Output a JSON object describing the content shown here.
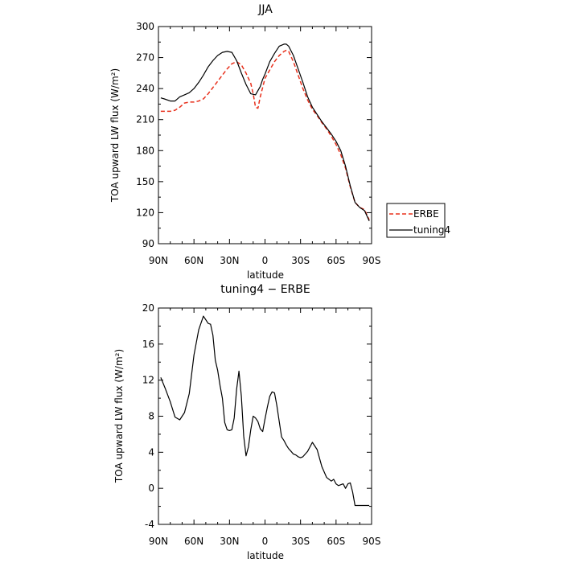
{
  "chart_data": [
    {
      "type": "line",
      "title": "JJA",
      "xlabel": "latitude",
      "ylabel": "TOA upward LW flux (W/m²)",
      "xlim": [
        90,
        -90
      ],
      "ylim": [
        90,
        300
      ],
      "xticks": [
        {
          "value": 90,
          "label": "90N"
        },
        {
          "value": 60,
          "label": "60N"
        },
        {
          "value": 30,
          "label": "30N"
        },
        {
          "value": 0,
          "label": "0"
        },
        {
          "value": -30,
          "label": "30S"
        },
        {
          "value": -60,
          "label": "60S"
        },
        {
          "value": -90,
          "label": "90S"
        }
      ],
      "yticks": [
        90,
        120,
        150,
        180,
        210,
        240,
        270,
        300
      ],
      "legend": "right",
      "series": [
        {
          "name": "ERBE",
          "color": "#e8301c",
          "dash": "dashed",
          "x": [
            88,
            85,
            80,
            76,
            72,
            68,
            64,
            60,
            56,
            52,
            48,
            44,
            40,
            36,
            32,
            28,
            24,
            20,
            16,
            12,
            10,
            8,
            6,
            4,
            0,
            -4,
            -8,
            -12,
            -16,
            -18,
            -20,
            -24,
            -28,
            -32,
            -36,
            -40,
            -44,
            -48,
            -52,
            -56,
            -60,
            -64,
            -68,
            -72,
            -76,
            -80,
            -84,
            -88
          ],
          "y": [
            218,
            218,
            218,
            219,
            222,
            226,
            227,
            227,
            228,
            230,
            235,
            241,
            247,
            253,
            259,
            264,
            266,
            263,
            255,
            245,
            235,
            222,
            221,
            232,
            250,
            258,
            266,
            272,
            276,
            277,
            276,
            266,
            253,
            240,
            229,
            220,
            214,
            207,
            201,
            194,
            186,
            176,
            163,
            145,
            130,
            125,
            123,
            113
          ]
        },
        {
          "name": "tuning4",
          "color": "#000000",
          "dash": "solid",
          "x": [
            88,
            85,
            80,
            76,
            72,
            68,
            64,
            60,
            56,
            52,
            48,
            44,
            40,
            36,
            32,
            28,
            24,
            20,
            16,
            12,
            8,
            4,
            2,
            0,
            -4,
            -8,
            -12,
            -16,
            -18,
            -20,
            -24,
            -28,
            -32,
            -36,
            -40,
            -44,
            -48,
            -52,
            -56,
            -60,
            -64,
            -68,
            -72,
            -76,
            -80,
            -84,
            -88
          ],
          "y": [
            231,
            230,
            228,
            228,
            232,
            234,
            236,
            240,
            246,
            253,
            261,
            267,
            272,
            275,
            276,
            275,
            267,
            255,
            244,
            235,
            234,
            242,
            249,
            254,
            266,
            274,
            281,
            283,
            283,
            281,
            272,
            259,
            246,
            232,
            222,
            215,
            208,
            202,
            196,
            189,
            180,
            165,
            146,
            130,
            125,
            122,
            112
          ]
        }
      ]
    },
    {
      "type": "line",
      "title": "tuning4 − ERBE",
      "xlabel": "latitude",
      "ylabel": "TOA upward LW flux (W/m²)",
      "xlim": [
        90,
        -90
      ],
      "ylim": [
        -4,
        20
      ],
      "xticks": [
        {
          "value": 90,
          "label": "90N"
        },
        {
          "value": 60,
          "label": "60N"
        },
        {
          "value": 30,
          "label": "30N"
        },
        {
          "value": 0,
          "label": "0"
        },
        {
          "value": -30,
          "label": "30S"
        },
        {
          "value": -60,
          "label": "60S"
        },
        {
          "value": -90,
          "label": "90S"
        }
      ],
      "yticks": [
        -4,
        0,
        4,
        8,
        12,
        16,
        20
      ],
      "series": [
        {
          "color": "#000000",
          "dash": "solid",
          "x": [
            88,
            84,
            80,
            76,
            72,
            68,
            64,
            60,
            56,
            52,
            48,
            46,
            44,
            42,
            40,
            38,
            36,
            34,
            32,
            30,
            28,
            26,
            24,
            22,
            20,
            18,
            16,
            14,
            12,
            10,
            8,
            6,
            4,
            2,
            0,
            -2,
            -4,
            -6,
            -8,
            -10,
            -12,
            -14,
            -16,
            -18,
            -20,
            -22,
            -24,
            -26,
            -28,
            -30,
            -32,
            -36,
            -40,
            -44,
            -48,
            -52,
            -56,
            -58,
            -60,
            -62,
            -64,
            -66,
            -68,
            -70,
            -72,
            -74,
            -76,
            -78,
            -80,
            -82,
            -84,
            -86,
            -88
          ],
          "y": [
            12.3,
            11.0,
            9.6,
            7.9,
            7.6,
            8.4,
            10.5,
            14.8,
            17.6,
            19.1,
            18.3,
            18.2,
            17.0,
            14.2,
            13.1,
            11.4,
            10.0,
            7.3,
            6.5,
            6.4,
            6.5,
            7.8,
            11.0,
            13.0,
            10.2,
            5.8,
            3.6,
            4.6,
            6.5,
            8.0,
            7.8,
            7.4,
            6.6,
            6.3,
            7.7,
            9.0,
            10.2,
            10.7,
            10.6,
            9.2,
            7.4,
            5.7,
            5.3,
            4.8,
            4.4,
            4.1,
            3.8,
            3.7,
            3.5,
            3.4,
            3.5,
            4.1,
            5.1,
            4.3,
            2.4,
            1.2,
            0.8,
            1.0,
            0.5,
            0.3,
            0.4,
            0.5,
            0.0,
            0.5,
            0.6,
            -0.4,
            -1.9,
            -1.9,
            -1.9,
            -1.9,
            -1.9,
            -1.9,
            -1.9
          ]
        }
      ]
    }
  ]
}
